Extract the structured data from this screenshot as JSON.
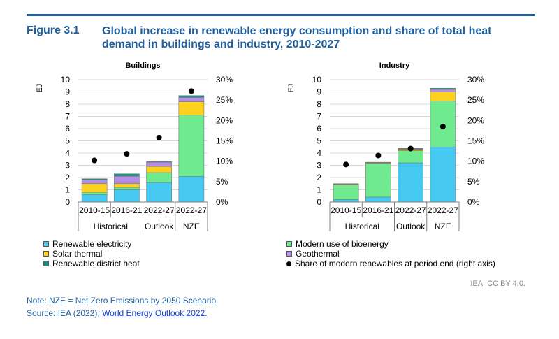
{
  "figure": {
    "number": "Figure 3.1",
    "title": "Global increase in renewable energy consumption and share of total heat demand in buildings and industry, 2010-2027"
  },
  "colors": {
    "renewable_electricity": "#46c9f2",
    "bioenergy": "#6fea8f",
    "solar_thermal": "#fdd21f",
    "geothermal": "#b58de6",
    "district_heat": "#1a8e7d",
    "share_dot": "#000000",
    "title_blue": "#1f5f9e"
  },
  "legend": [
    {
      "key": "renewable_electricity",
      "label": "Renewable electricity"
    },
    {
      "key": "bioenergy",
      "label": "Modern use of bioenergy"
    },
    {
      "key": "solar_thermal",
      "label": "Solar thermal"
    },
    {
      "key": "geothermal",
      "label": "Geothermal"
    },
    {
      "key": "district_heat",
      "label": "Renewable district heat"
    },
    {
      "key": "share_dot",
      "label": "Share of modern renewables at period end (right axis)"
    }
  ],
  "chart_data": [
    {
      "type": "bar",
      "stacked": true,
      "title": "Buildings",
      "ylabel": "EJ",
      "ylim": [
        0,
        10
      ],
      "yticks": [
        0,
        1,
        2,
        3,
        4,
        5,
        6,
        7,
        8,
        9,
        10
      ],
      "y2lim": [
        0,
        30
      ],
      "y2ticks": [
        "0%",
        "5%",
        "10%",
        "15%",
        "20%",
        "25%",
        "30%"
      ],
      "categories": [
        "2010-15",
        "2016-21",
        "2022-27",
        "2022-27"
      ],
      "groups": [
        {
          "label": "Historical",
          "span": [
            0,
            1
          ]
        },
        {
          "label": "Outlook",
          "span": [
            2,
            2
          ]
        },
        {
          "label": "NZE",
          "span": [
            3,
            3
          ]
        }
      ],
      "series": [
        {
          "key": "renewable_electricity",
          "name": "Renewable electricity",
          "values": [
            0.6,
            1.0,
            1.6,
            2.1
          ]
        },
        {
          "key": "bioenergy",
          "name": "Modern use of bioenergy",
          "values": [
            0.2,
            0.2,
            0.8,
            5.0
          ]
        },
        {
          "key": "solar_thermal",
          "name": "Solar thermal",
          "values": [
            0.7,
            0.3,
            0.5,
            1.1
          ]
        },
        {
          "key": "geothermal",
          "name": "Geothermal",
          "values": [
            0.3,
            0.6,
            0.35,
            0.35
          ]
        },
        {
          "key": "district_heat",
          "name": "Renewable district heat",
          "values": [
            0.1,
            0.2,
            0.05,
            0.15
          ]
        }
      ],
      "share_percent": [
        10.2,
        11.8,
        15.8,
        27.2
      ]
    },
    {
      "type": "bar",
      "stacked": true,
      "title": "Industry",
      "ylabel": "EJ",
      "ylim": [
        0,
        10
      ],
      "yticks": [
        0,
        1,
        2,
        3,
        4,
        5,
        6,
        7,
        8,
        9,
        10
      ],
      "y2lim": [
        0,
        30
      ],
      "y2ticks": [
        "0%",
        "5%",
        "10%",
        "15%",
        "20%",
        "25%",
        "30%"
      ],
      "categories": [
        "2010-15",
        "2016-21",
        "2022-27",
        "2022-27"
      ],
      "groups": [
        {
          "label": "Historical",
          "span": [
            0,
            1
          ]
        },
        {
          "label": "Outlook",
          "span": [
            2,
            2
          ]
        },
        {
          "label": "NZE",
          "span": [
            3,
            3
          ]
        }
      ],
      "series": [
        {
          "key": "renewable_electricity",
          "name": "Renewable electricity",
          "values": [
            0.2,
            0.4,
            3.2,
            4.5
          ]
        },
        {
          "key": "bioenergy",
          "name": "Modern use of bioenergy",
          "values": [
            1.2,
            2.75,
            1.0,
            3.75
          ]
        },
        {
          "key": "solar_thermal",
          "name": "Solar thermal",
          "values": [
            0.05,
            0.05,
            0.1,
            0.75
          ]
        },
        {
          "key": "geothermal",
          "name": "Geothermal",
          "values": [
            0.02,
            0.02,
            0.03,
            0.2
          ]
        },
        {
          "key": "district_heat",
          "name": "Renewable district heat",
          "values": [
            0.03,
            0.03,
            0.05,
            0.1
          ]
        }
      ],
      "share_percent": [
        9.2,
        11.4,
        13.1,
        18.5
      ]
    }
  ],
  "credit": "IEA. CC BY 4.0.",
  "note": "Note: NZE = Net Zero Emissions by 2050 Scenario.",
  "source": {
    "prefix": "Source: IEA (2022), ",
    "link_text": "World Energy Outlook 2022."
  }
}
